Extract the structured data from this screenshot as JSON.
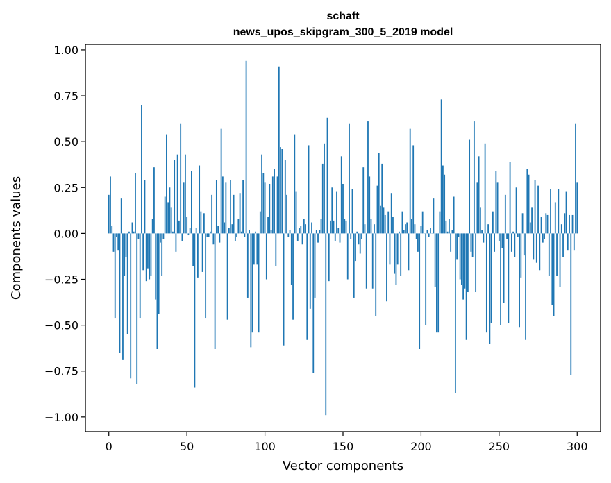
{
  "chart_data": {
    "type": "bar",
    "title": "schaft",
    "subtitle": "news_upos_skipgram_300_5_2019 model",
    "xlabel": "Vector components",
    "ylabel": "Components values",
    "xlim": [
      -15,
      315
    ],
    "ylim": [
      -1.08,
      1.03
    ],
    "xticks": [
      0,
      50,
      100,
      150,
      200,
      250,
      300
    ],
    "yticks": [
      -1.0,
      -0.75,
      -0.5,
      -0.25,
      0.0,
      0.25,
      0.5,
      0.75,
      1.0
    ],
    "ytick_labels": [
      "−1.00",
      "−0.75",
      "−0.50",
      "−0.25",
      "0.00",
      "0.25",
      "0.50",
      "0.75",
      "1.00"
    ],
    "bar_color": "#1f77b4",
    "grid": false,
    "values": [
      0.21,
      0.31,
      0.04,
      -0.1,
      -0.46,
      -0.02,
      -0.09,
      -0.65,
      0.19,
      -0.69,
      -0.23,
      -0.13,
      -0.55,
      0.01,
      -0.79,
      0.06,
      0.01,
      0.33,
      -0.82,
      -0.03,
      -0.46,
      0.7,
      -0.2,
      0.29,
      -0.26,
      -0.19,
      -0.25,
      -0.23,
      0.08,
      0.36,
      -0.36,
      -0.63,
      -0.44,
      -0.05,
      -0.23,
      -0.03,
      0.2,
      0.54,
      0.17,
      0.25,
      0.14,
      0.01,
      0.4,
      -0.1,
      0.43,
      0.07,
      0.6,
      -0.04,
      0.28,
      0.43,
      0.09,
      -0.01,
      0.03,
      0.34,
      -0.18,
      -0.84,
      0.03,
      -0.24,
      0.37,
      0.12,
      -0.21,
      0.11,
      -0.46,
      -0.02,
      -0.02,
      0.01,
      0.21,
      -0.06,
      -0.63,
      0.29,
      0.04,
      -0.05,
      0.57,
      0.31,
      0.06,
      0.28,
      -0.47,
      0.03,
      0.29,
      0.05,
      0.21,
      -0.04,
      -0.02,
      0.08,
      0.22,
      0.01,
      0.29,
      -0.02,
      0.94,
      -0.35,
      0.02,
      -0.62,
      -0.54,
      -0.17,
      0.01,
      -0.17,
      -0.54,
      0.12,
      0.43,
      0.33,
      0.28,
      -0.25,
      0.09,
      0.27,
      0.02,
      0.31,
      0.35,
      -0.18,
      0.31,
      0.91,
      0.47,
      0.46,
      -0.61,
      0.4,
      0.21,
      -0.02,
      0.02,
      -0.28,
      -0.47,
      0.54,
      0.23,
      -0.04,
      0.03,
      0.04,
      -0.06,
      0.08,
      0.05,
      -0.58,
      0.48,
      -0.41,
      0.06,
      -0.76,
      -0.35,
      0.02,
      -0.05,
      0.02,
      0.08,
      0.38,
      0.49,
      -0.99,
      0.63,
      -0.26,
      0.07,
      0.25,
      0.07,
      -0.04,
      0.23,
      0.03,
      -0.05,
      0.42,
      0.27,
      0.08,
      0.07,
      -0.25,
      0.6,
      -0.03,
      0.24,
      -0.35,
      -0.15,
      0.01,
      -0.06,
      -0.11,
      -0.03,
      0.36,
      0.05,
      -0.3,
      0.61,
      0.31,
      0.08,
      -0.3,
      0.05,
      -0.45,
      0.26,
      0.44,
      0.15,
      0.38,
      0.14,
      0.1,
      -0.37,
      0.12,
      -0.17,
      0.22,
      0.09,
      -0.22,
      -0.28,
      -0.17,
      0.01,
      -0.23,
      0.12,
      0.02,
      0.05,
      0.06,
      -0.2,
      0.57,
      0.08,
      0.48,
      0.05,
      -0.03,
      -0.1,
      -0.63,
      0.04,
      0.12,
      0.0,
      -0.5,
      0.02,
      -0.02,
      0.03,
      0.0,
      0.19,
      -0.29,
      -0.54,
      -0.54,
      0.12,
      0.73,
      0.37,
      0.32,
      0.07,
      0.01,
      0.08,
      -0.1,
      0.02,
      0.2,
      -0.87,
      -0.14,
      -0.02,
      -0.25,
      -0.28,
      -0.36,
      -0.3,
      -0.58,
      -0.32,
      0.51,
      -0.1,
      -0.13,
      0.61,
      -0.32,
      0.28,
      0.42,
      0.14,
      0.02,
      -0.05,
      0.49,
      -0.54,
      0.05,
      -0.6,
      -0.49,
      0.12,
      -0.1,
      0.34,
      0.28,
      -0.04,
      -0.5,
      -0.08,
      -0.38,
      0.21,
      -0.03,
      -0.49,
      0.39,
      -0.1,
      0.01,
      -0.13,
      0.25,
      -0.02,
      -0.51,
      -0.24,
      0.11,
      -0.12,
      -0.58,
      0.35,
      0.32,
      0.06,
      0.14,
      -0.14,
      0.29,
      -0.16,
      0.26,
      -0.2,
      0.09,
      -0.05,
      -0.03,
      0.11,
      0.1,
      -0.23,
      0.24,
      -0.39,
      -0.45,
      0.17,
      -0.23,
      0.24,
      -0.29,
      0.05,
      -0.13,
      0.11,
      0.23,
      -0.09,
      0.1,
      -0.77,
      0.1,
      -0.09,
      0.6,
      0.28
    ]
  }
}
